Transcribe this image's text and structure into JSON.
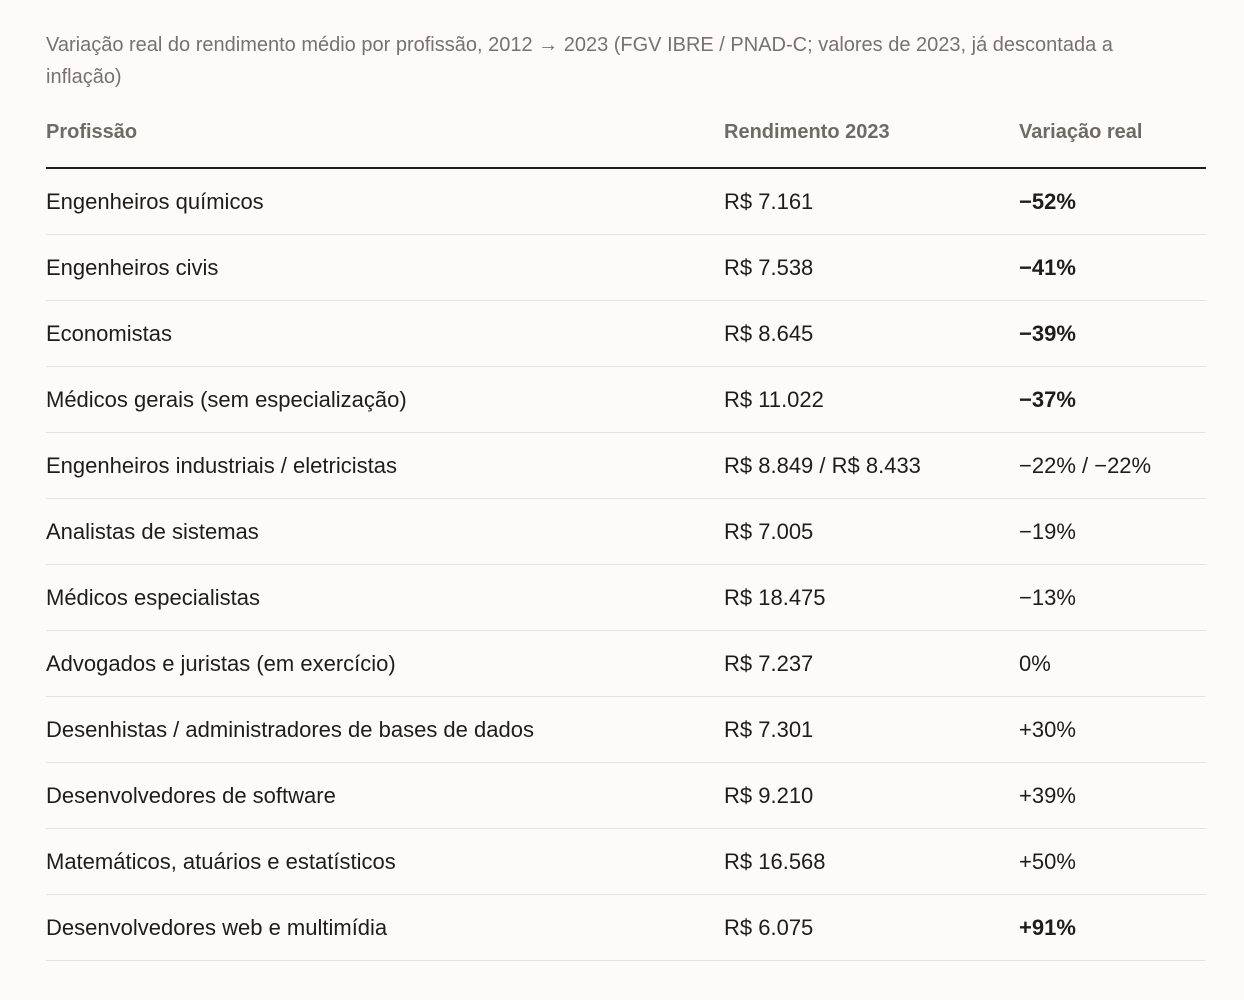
{
  "caption": "Variação real do rendimento médio por profissão, 2012 → 2023 (FGV IBRE / PNAD-C; valores de 2023, já descontada a inflação)",
  "table": {
    "headers": [
      "Profissão",
      "Rendimento 2023",
      "Variação real"
    ],
    "rows": [
      {
        "profession": "Engenheiros químicos",
        "income": "R$ 7.161",
        "change": "−52%",
        "emphasis": true
      },
      {
        "profession": "Engenheiros civis",
        "income": "R$ 7.538",
        "change": "−41%",
        "emphasis": true
      },
      {
        "profession": "Economistas",
        "income": "R$ 8.645",
        "change": "−39%",
        "emphasis": true
      },
      {
        "profession": "Médicos gerais (sem especialização)",
        "income": "R$ 11.022",
        "change": "−37%",
        "emphasis": true
      },
      {
        "profession": "Engenheiros industriais / eletricistas",
        "income": "R$ 8.849 / R$ 8.433",
        "change": "−22% / −22%",
        "emphasis": false
      },
      {
        "profession": "Analistas de sistemas",
        "income": "R$ 7.005",
        "change": "−19%",
        "emphasis": false
      },
      {
        "profession": "Médicos especialistas",
        "income": "R$ 18.475",
        "change": "−13%",
        "emphasis": false
      },
      {
        "profession": "Advogados e juristas (em exercício)",
        "income": "R$ 7.237",
        "change": "0%",
        "emphasis": false
      },
      {
        "profession": "Desenhistas / administradores de bases de dados",
        "income": "R$ 7.301",
        "change": "+30%",
        "emphasis": false
      },
      {
        "profession": "Desenvolvedores de software",
        "income": "R$ 9.210",
        "change": "+39%",
        "emphasis": false
      },
      {
        "profession": "Matemáticos, atuários e estatísticos",
        "income": "R$ 16.568",
        "change": "+50%",
        "emphasis": false
      },
      {
        "profession": "Desenvolvedores web e multimídia",
        "income": "R$ 6.075",
        "change": "+91%",
        "emphasis": true
      }
    ]
  }
}
